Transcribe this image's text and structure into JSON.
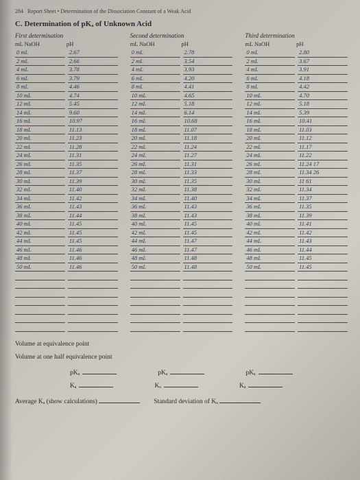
{
  "pageNumber": "284",
  "headerLine": "Report Sheet • Determination of the Dissociation Constant of a Weak Acid",
  "sectionLabel": "C. Determination of pKₐ of Unknown Acid",
  "columns": {
    "headers": {
      "first": "First determination",
      "second": "Second determination",
      "third": "Third determination"
    },
    "subLeft": "mL NaOH",
    "subRight": "pH"
  },
  "data": {
    "col1": [
      [
        "0 mL",
        "2.67"
      ],
      [
        "2 mL",
        "2.66"
      ],
      [
        "4 mL",
        "3.78"
      ],
      [
        "6 mL",
        "3.79"
      ],
      [
        "8 mL",
        "4.46"
      ],
      [
        "10 mL",
        "4.74"
      ],
      [
        "12 mL",
        "5.45"
      ],
      [
        "14 mL",
        "9.60"
      ],
      [
        "16 mL",
        "10.97"
      ],
      [
        "18 mL",
        "11.13"
      ],
      [
        "20 mL",
        "11.23"
      ],
      [
        "22 mL",
        "11.28"
      ],
      [
        "24 mL",
        "11.31"
      ],
      [
        "26 mL",
        "11.35"
      ],
      [
        "28 mL",
        "11.37"
      ],
      [
        "30 mL",
        "11.39"
      ],
      [
        "32 mL",
        "11.40"
      ],
      [
        "34 mL",
        "11.42"
      ],
      [
        "36 mL",
        "11.43"
      ],
      [
        "38 mL",
        "11.44"
      ],
      [
        "40 mL",
        "11.45"
      ],
      [
        "42 mL",
        "11.45"
      ],
      [
        "44 mL",
        "11.45"
      ],
      [
        "46 mL",
        "11.46"
      ],
      [
        "48 mL",
        "11.46"
      ],
      [
        "50 mL",
        "11.46"
      ],
      [
        "",
        ""
      ],
      [
        "",
        ""
      ],
      [
        "",
        ""
      ],
      [
        "",
        ""
      ],
      [
        "",
        ""
      ],
      [
        "",
        ""
      ],
      [
        "",
        ""
      ]
    ],
    "col2": [
      [
        "0 mL",
        "2.78"
      ],
      [
        "2 mL",
        "3.54"
      ],
      [
        "4 mL",
        "3.93"
      ],
      [
        "6 mL",
        "4.20"
      ],
      [
        "8 mL",
        "4.41"
      ],
      [
        "10 mL",
        "4.65"
      ],
      [
        "12 mL",
        "5.18"
      ],
      [
        "14 mL",
        "6.14"
      ],
      [
        "16 mL",
        "10.68"
      ],
      [
        "18 mL",
        "11.07"
      ],
      [
        "20 mL",
        "11.18"
      ],
      [
        "22 mL",
        "11.24"
      ],
      [
        "24 mL",
        "11.27"
      ],
      [
        "26 mL",
        "11.31"
      ],
      [
        "28 mL",
        "11.33"
      ],
      [
        "30 mL",
        "11.35"
      ],
      [
        "32 mL",
        "11.38"
      ],
      [
        "34 mL",
        "11.40"
      ],
      [
        "36 mL",
        "11.43"
      ],
      [
        "38 mL",
        "11.43"
      ],
      [
        "40 mL",
        "11.45"
      ],
      [
        "42 mL",
        "11.45"
      ],
      [
        "44 mL",
        "11.47"
      ],
      [
        "46 mL",
        "11.47"
      ],
      [
        "48 mL",
        "11.48"
      ],
      [
        "50 mL",
        "11.48"
      ],
      [
        "",
        ""
      ],
      [
        "",
        ""
      ],
      [
        "",
        ""
      ],
      [
        "",
        ""
      ],
      [
        "",
        ""
      ],
      [
        "",
        ""
      ],
      [
        "",
        ""
      ]
    ],
    "col3": [
      [
        "0 mL",
        "2.80"
      ],
      [
        "2 mL",
        "3.67"
      ],
      [
        "4 mL",
        "3.91"
      ],
      [
        "6 mL",
        "4.18"
      ],
      [
        "8 mL",
        "4.42"
      ],
      [
        "10 mL",
        "4.70"
      ],
      [
        "12 mL",
        "5.18"
      ],
      [
        "14 mL",
        "5.39"
      ],
      [
        "16 mL",
        "10.41"
      ],
      [
        "18 mL",
        "11.03"
      ],
      [
        "20 mL",
        "11.12"
      ],
      [
        "22 mL",
        "11.17"
      ],
      [
        "24 mL",
        "11.22"
      ],
      [
        "26 mL",
        "11.24 17"
      ],
      [
        "28 mL",
        "11.34 26"
      ],
      [
        "30 mL",
        "11 61"
      ],
      [
        "32 mL",
        "11.34"
      ],
      [
        "34 mL",
        "11.37"
      ],
      [
        "36 mL",
        "11.35"
      ],
      [
        "38 mL",
        "11.39"
      ],
      [
        "40 mL",
        "11.41"
      ],
      [
        "42 mL",
        "11.42"
      ],
      [
        "44 mL",
        "11.43"
      ],
      [
        "46 mL",
        "11.44"
      ],
      [
        "48 mL",
        "11.45"
      ],
      [
        "50 mL",
        "11.45"
      ],
      [
        "",
        ""
      ],
      [
        "",
        ""
      ],
      [
        "",
        ""
      ],
      [
        "",
        ""
      ],
      [
        "",
        ""
      ],
      [
        "",
        ""
      ],
      [
        "",
        ""
      ]
    ]
  },
  "bottom": {
    "volEq": "Volume at equivalence point",
    "volHalf": "Volume at one half equivalence point",
    "pkLabel": "pKₐ",
    "kLabel": "Kₐ",
    "avgLabel": "Average Kₐ (show calculations)",
    "stdevLabel": "Standard deviation of Kₐ"
  },
  "style": {
    "handwritingColor": "#2a3a5a",
    "printColor": "#2a2a2a",
    "ruleColor": "#4a4a4a",
    "bg": "#c5c2ba"
  }
}
